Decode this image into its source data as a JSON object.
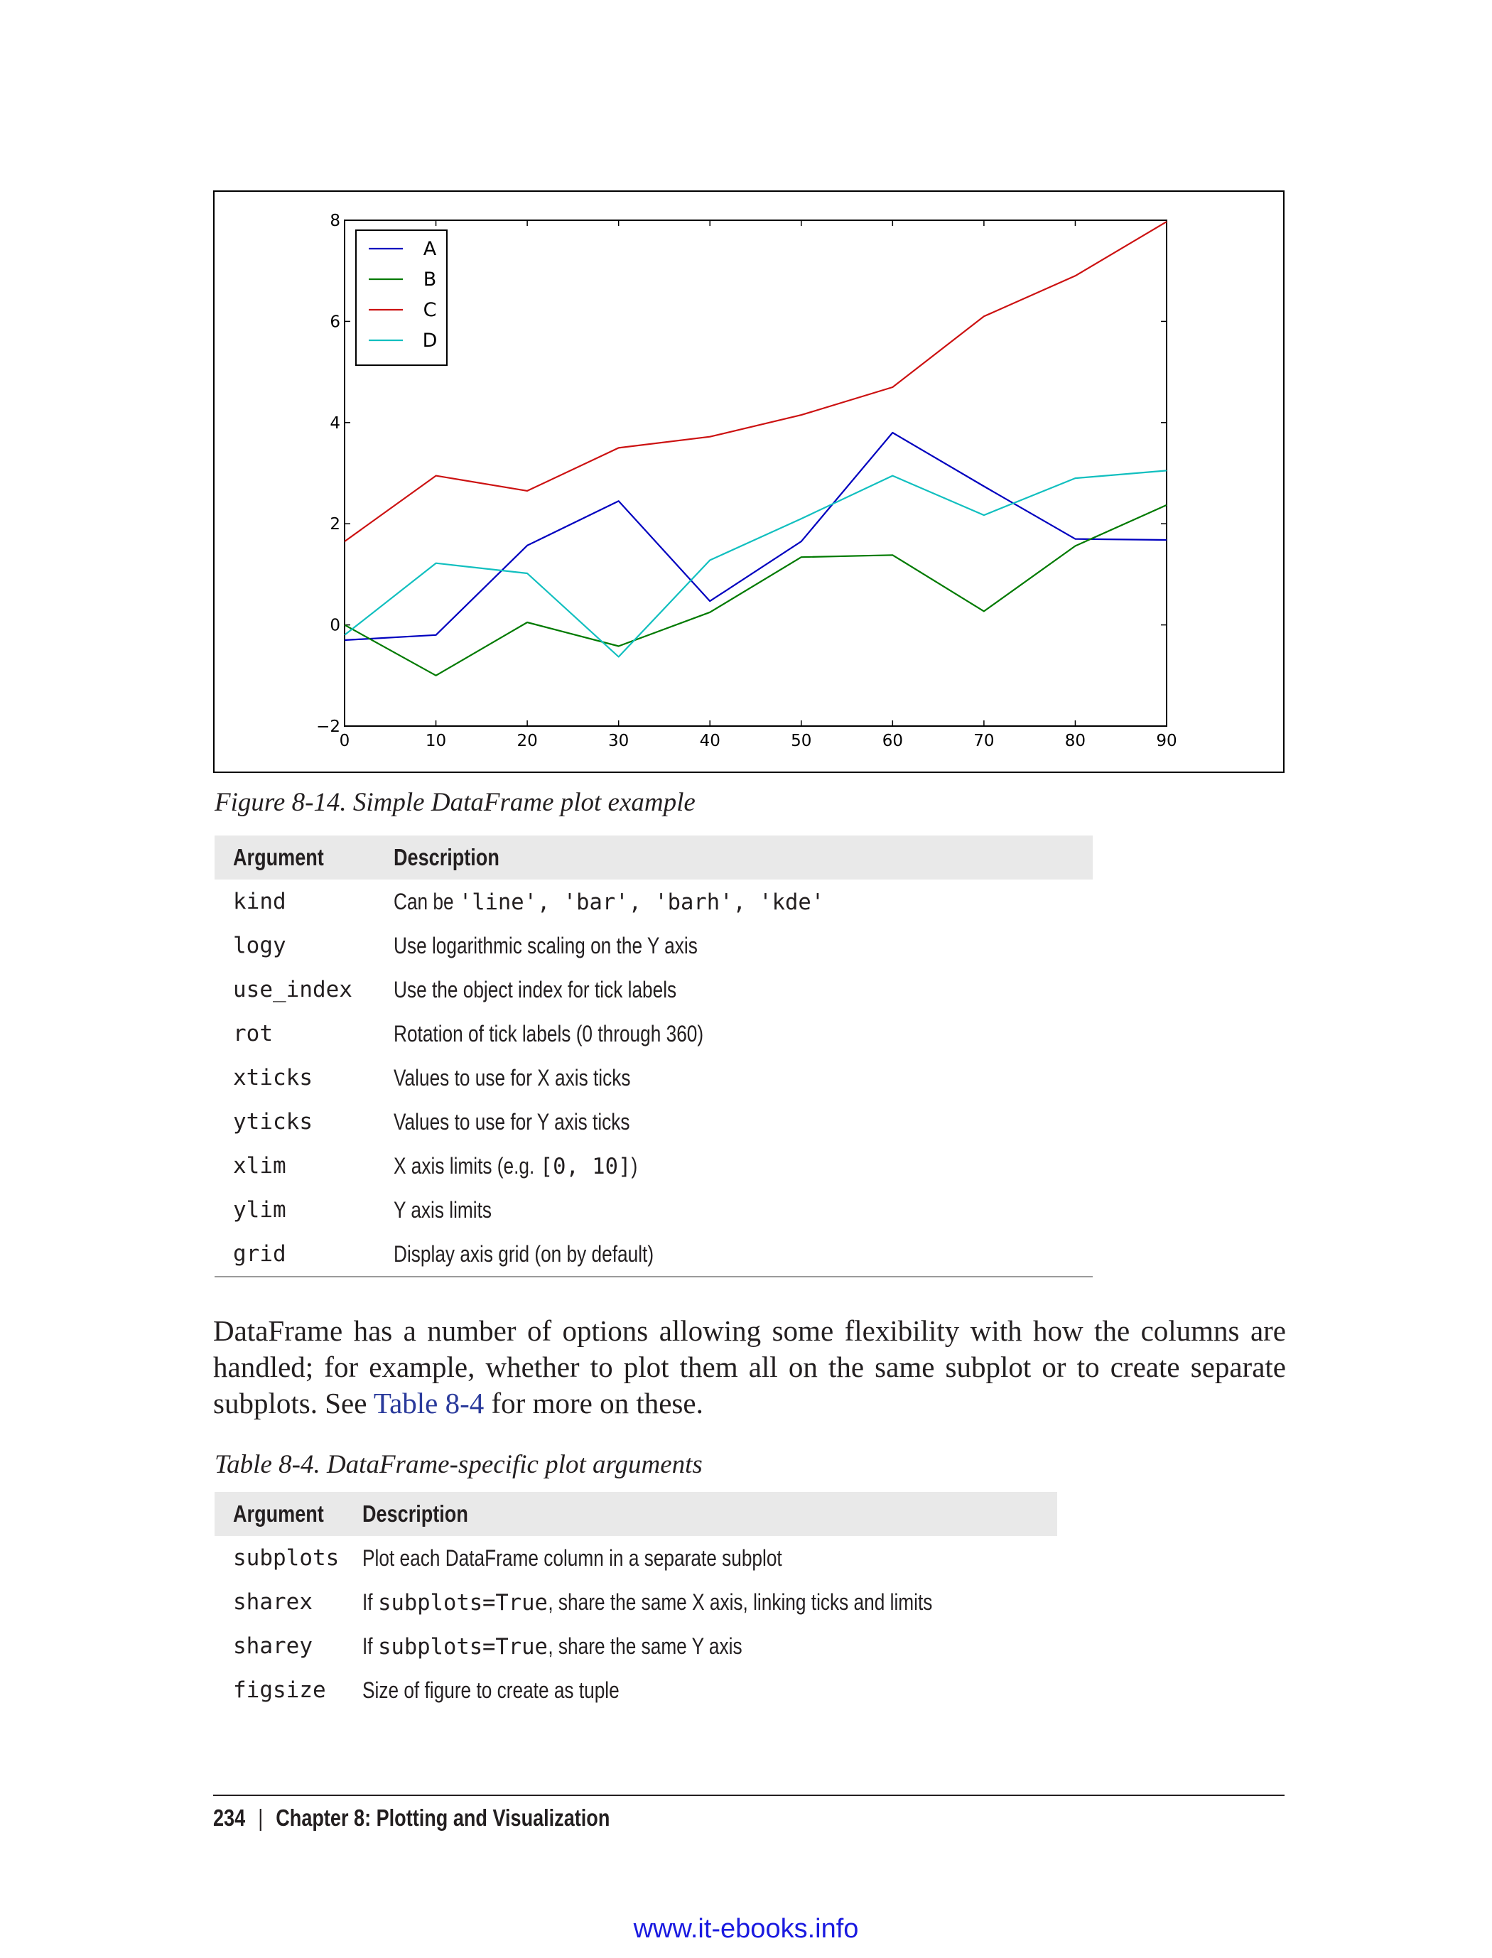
{
  "figure": {
    "caption": "Figure 8-14. Simple DataFrame plot example",
    "chart_data": {
      "type": "line",
      "x": [
        0,
        10,
        20,
        30,
        40,
        50,
        60,
        70,
        80,
        90
      ],
      "series": [
        {
          "name": "A",
          "color": "#0000bf",
          "values": [
            -0.3,
            -0.2,
            1.57,
            2.45,
            0.47,
            1.65,
            3.8,
            2.74,
            1.7,
            1.68
          ]
        },
        {
          "name": "B",
          "color": "#007a00",
          "values": [
            0.0,
            -1.0,
            0.05,
            -0.42,
            0.25,
            1.34,
            1.38,
            0.27,
            1.56,
            2.37
          ]
        },
        {
          "name": "C",
          "color": "#cc1111",
          "values": [
            1.65,
            2.95,
            2.65,
            3.5,
            3.72,
            4.15,
            4.7,
            6.1,
            6.9,
            7.97
          ]
        },
        {
          "name": "D",
          "color": "#11bfbf",
          "values": [
            -0.2,
            1.22,
            1.02,
            -0.63,
            1.28,
            2.1,
            2.95,
            2.17,
            2.9,
            3.05
          ]
        }
      ],
      "xlim": [
        0,
        90
      ],
      "ylim": [
        -2,
        8
      ],
      "xticks": [
        0,
        10,
        20,
        30,
        40,
        50,
        60,
        70,
        80,
        90
      ],
      "yticks": [
        -2,
        0,
        2,
        4,
        6,
        8
      ],
      "xtick_labels": [
        "0",
        "10",
        "20",
        "30",
        "40",
        "50",
        "60",
        "70",
        "80",
        "90"
      ],
      "ytick_labels": [
        "−2",
        "0",
        "2",
        "4",
        "6",
        "8"
      ],
      "legend_position": "upper-left",
      "grid": false
    }
  },
  "table1": {
    "header": {
      "argument": "Argument",
      "description": "Description"
    },
    "rows": [
      {
        "arg": "kind",
        "desc": [
          {
            "t": "Can be "
          },
          {
            "m": "'line', 'bar', 'barh', 'kde'"
          }
        ]
      },
      {
        "arg": "logy",
        "desc": [
          {
            "t": "Use logarithmic scaling on the Y axis"
          }
        ]
      },
      {
        "arg": "use_index",
        "desc": [
          {
            "t": "Use the object index for tick labels"
          }
        ]
      },
      {
        "arg": "rot",
        "desc": [
          {
            "t": "Rotation of tick labels (0 through 360)"
          }
        ]
      },
      {
        "arg": "xticks",
        "desc": [
          {
            "t": "Values to use for X axis ticks"
          }
        ]
      },
      {
        "arg": "yticks",
        "desc": [
          {
            "t": "Values to use for Y axis ticks"
          }
        ]
      },
      {
        "arg": "xlim",
        "desc": [
          {
            "t": "X axis limits (e.g. "
          },
          {
            "m": "[0, 10]"
          },
          {
            "t": ")"
          }
        ]
      },
      {
        "arg": "ylim",
        "desc": [
          {
            "t": "Y axis limits"
          }
        ]
      },
      {
        "arg": "grid",
        "desc": [
          {
            "t": "Display axis grid (on by default)"
          }
        ]
      }
    ]
  },
  "paragraph": {
    "before_link": "DataFrame has a number of options allowing some flexibility with how the columns are handled; for example, whether to plot them all on the same subplot or to create separate subplots. See ",
    "link": "Table 8-4",
    "after_link": " for more on these."
  },
  "table2": {
    "caption": "Table 8-4. DataFrame-specific plot arguments",
    "header": {
      "argument": "Argument",
      "description": "Description"
    },
    "rows": [
      {
        "arg": "subplots",
        "desc": [
          {
            "t": "Plot each DataFrame column in a separate subplot"
          }
        ]
      },
      {
        "arg": "sharex",
        "desc": [
          {
            "t": "If "
          },
          {
            "m": "subplots=True"
          },
          {
            "t": ", share the same X axis, linking ticks and limits"
          }
        ]
      },
      {
        "arg": "sharey",
        "desc": [
          {
            "t": "If "
          },
          {
            "m": "subplots=True"
          },
          {
            "t": ", share the same Y axis"
          }
        ]
      },
      {
        "arg": "figsize",
        "desc": [
          {
            "t": "Size of figure to create as tuple"
          }
        ]
      }
    ]
  },
  "footer": {
    "page_number": "234",
    "separator": "|",
    "chapter": "Chapter 8:  Plotting and Visualization"
  },
  "watermark": "www.it-ebooks.info"
}
